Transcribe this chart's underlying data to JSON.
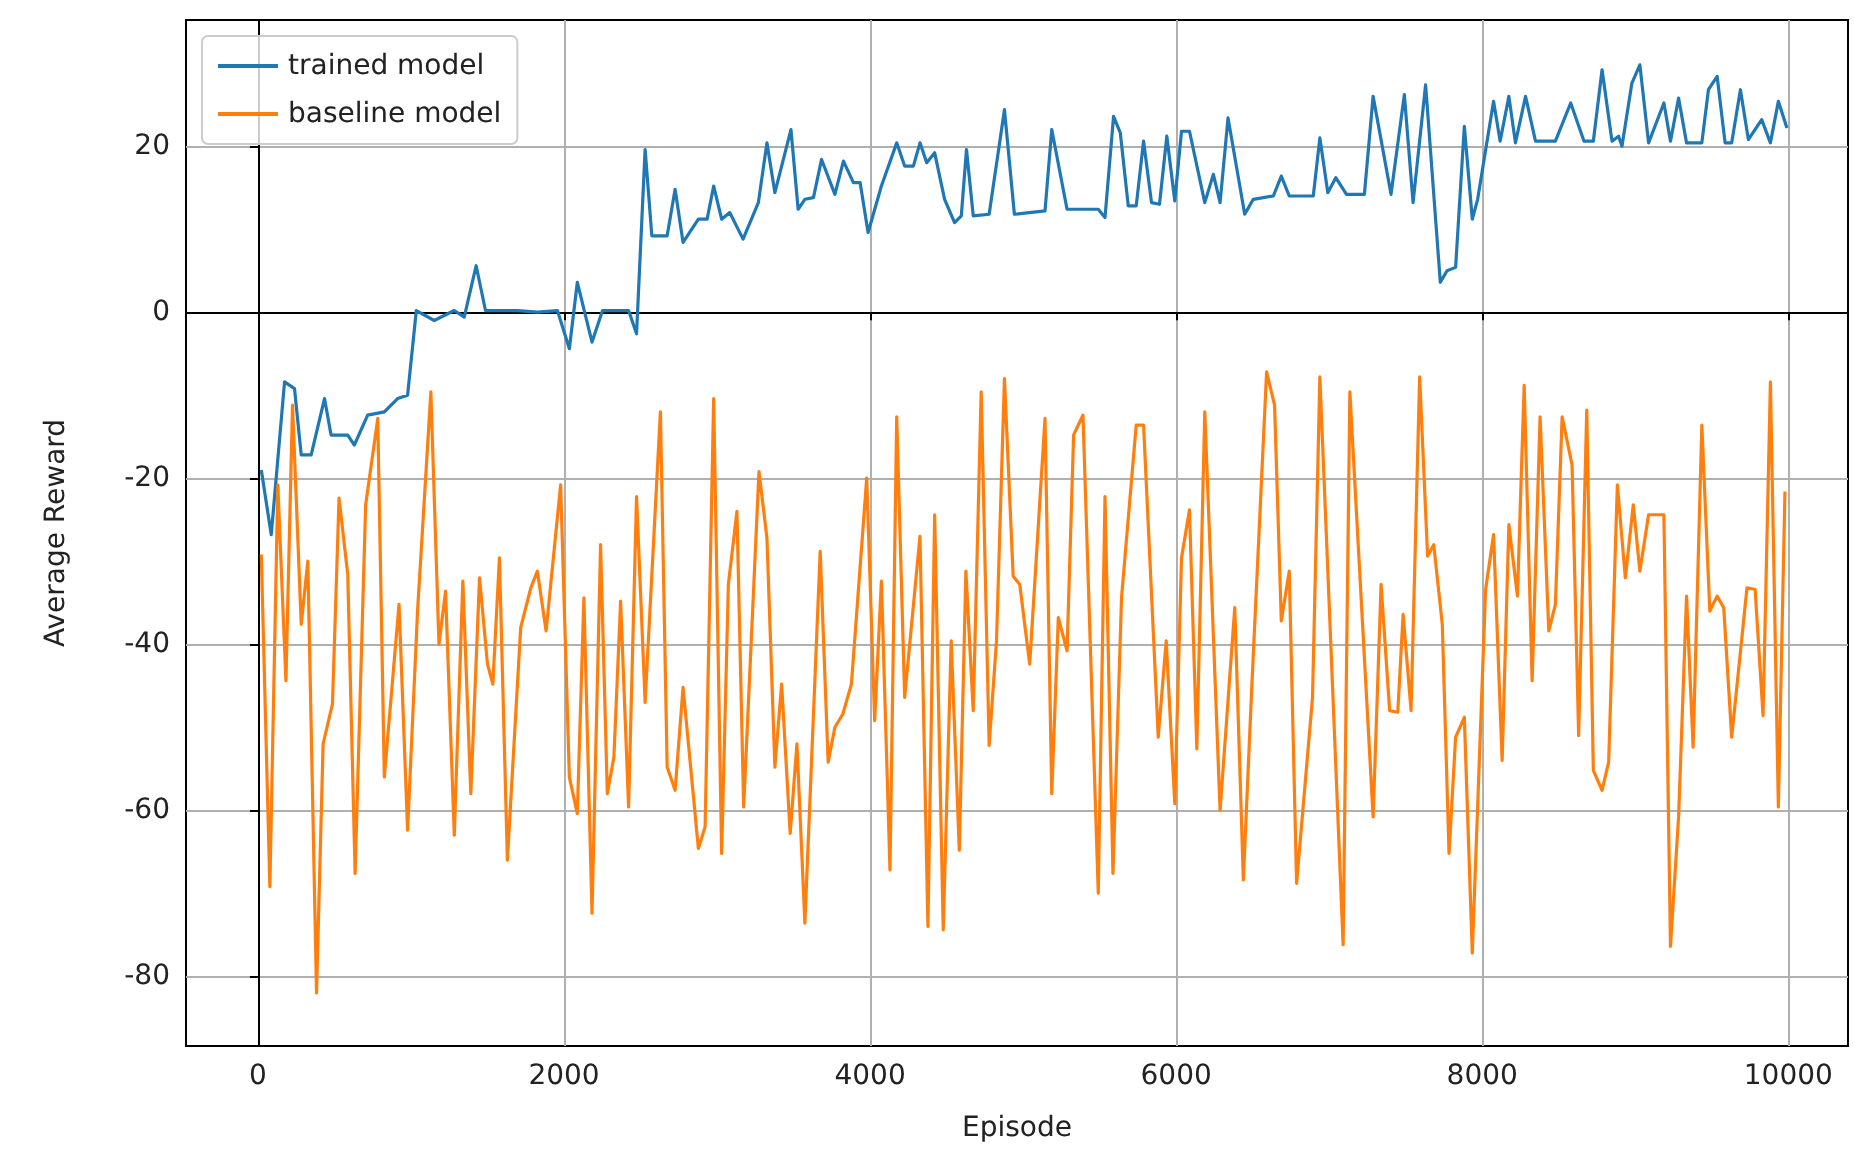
{
  "chart_data": {
    "type": "line",
    "xlabel": "Episode",
    "ylabel": "Average Reward",
    "xlim": [
      -470,
      10390
    ],
    "ylim": [
      -88.4,
      35.2
    ],
    "xticks": [
      0,
      2000,
      4000,
      6000,
      8000,
      10000
    ],
    "yticks": [
      -80,
      -60,
      -40,
      -20,
      0,
      20
    ],
    "grid": true,
    "legend": "top left",
    "series": [
      {
        "name": "trained model",
        "color": "#1f77b4",
        "x": [
          22,
          87,
          174,
          239,
          283,
          348,
          435,
          478,
          587,
          630,
          717,
          826,
          913,
          978,
          1035,
          1152,
          1283,
          1348,
          1426,
          1487,
          1696,
          1826,
          1957,
          2035,
          2087,
          2183,
          2252,
          2422,
          2474,
          2530,
          2574,
          2674,
          2726,
          2778,
          2878,
          2935,
          2978,
          3030,
          3083,
          3170,
          3270,
          3326,
          3378,
          3483,
          3530,
          3574,
          3630,
          3683,
          3770,
          3826,
          3891,
          3935,
          3987,
          4074,
          4174,
          4226,
          4283,
          4326,
          4370,
          4422,
          4487,
          4552,
          4596,
          4630,
          4674,
          4778,
          4878,
          4943,
          5143,
          5187,
          5287,
          5491,
          5535,
          5591,
          5635,
          5687,
          5739,
          5787,
          5839,
          5891,
          5939,
          5991,
          6035,
          6087,
          6187,
          6243,
          6287,
          6339,
          6448,
          6504,
          6635,
          6687,
          6739,
          6896,
          6939,
          6991,
          7043,
          7113,
          7230,
          7287,
          7404,
          7491,
          7548,
          7630,
          7726,
          7770,
          7826,
          7883,
          7935,
          7970,
          8074,
          8117,
          8174,
          8217,
          8283,
          8348,
          8478,
          8578,
          8665,
          8726,
          8783,
          8848,
          8891,
          8913,
          8978,
          9030,
          9087,
          9187,
          9230,
          9283,
          9335,
          9435,
          9478,
          9535,
          9587,
          9630,
          9687,
          9739,
          9826,
          9883,
          9935,
          9991
        ],
        "values": [
          -19,
          -26.8,
          -8.4,
          -9.2,
          -17.2,
          -17.2,
          -10.4,
          -14.8,
          -14.8,
          -16,
          -12.4,
          -12,
          -10.4,
          -10,
          0.2,
          -1,
          0.2,
          -0.6,
          5.6,
          0.2,
          0.2,
          0,
          0.2,
          -4.4,
          3.6,
          -3.6,
          0.2,
          0.2,
          -2.6,
          19.6,
          9.2,
          9.2,
          14.8,
          8.4,
          11.2,
          11.2,
          15.2,
          11.2,
          12,
          8.8,
          13.2,
          20.4,
          14.4,
          22,
          12.4,
          13.6,
          13.8,
          18.4,
          14.2,
          18.2,
          15.6,
          15.6,
          9.6,
          15.2,
          20.4,
          17.6,
          17.6,
          20.4,
          18,
          19.2,
          13.6,
          10.8,
          11.6,
          19.6,
          11.6,
          11.8,
          24.4,
          11.8,
          12.2,
          22,
          12.4,
          12.4,
          11.4,
          23.6,
          21.6,
          12.8,
          12.8,
          20.6,
          13.2,
          13,
          21.2,
          13.4,
          21.8,
          21.8,
          13.2,
          16.6,
          13.2,
          23.4,
          11.8,
          13.6,
          14,
          16.4,
          14,
          14,
          21,
          14.4,
          16.2,
          14.2,
          14.2,
          26,
          14.2,
          26.2,
          13.2,
          27.4,
          3.6,
          5,
          5.4,
          22.4,
          11.2,
          13.6,
          25.4,
          20.6,
          26,
          20.4,
          26,
          20.6,
          20.6,
          25.2,
          20.6,
          20.6,
          29.2,
          20.6,
          21.2,
          20,
          27.6,
          29.8,
          20.4,
          25.2,
          20.6,
          25.8,
          20.4,
          20.4,
          26.8,
          28.4,
          20.4,
          20.4,
          26.8,
          20.8,
          23.2,
          20.4,
          25.4,
          22.2
        ]
      },
      {
        "name": "baseline model",
        "color": "#ff7f0e",
        "x": [
          22,
          78,
          130,
          183,
          226,
          283,
          326,
          383,
          426,
          487,
          530,
          587,
          635,
          704,
          783,
          826,
          922,
          978,
          1043,
          1130,
          1183,
          1226,
          1283,
          1339,
          1391,
          1448,
          1500,
          1535,
          1578,
          1630,
          1717,
          1783,
          1826,
          1883,
          1978,
          2035,
          2087,
          2130,
          2183,
          2239,
          2283,
          2326,
          2370,
          2422,
          2474,
          2530,
          2630,
          2674,
          2726,
          2778,
          2878,
          2922,
          2978,
          3030,
          3074,
          3130,
          3174,
          3274,
          3326,
          3378,
          3422,
          3478,
          3522,
          3574,
          3674,
          3726,
          3770,
          3822,
          3878,
          3978,
          4030,
          4074,
          4130,
          4174,
          4226,
          4326,
          4378,
          4422,
          4478,
          4530,
          4583,
          4626,
          4674,
          4726,
          4778,
          4826,
          4878,
          4935,
          4978,
          5043,
          5143,
          5187,
          5230,
          5287,
          5330,
          5391,
          5491,
          5535,
          5587,
          5643,
          5739,
          5787,
          5883,
          5935,
          5991,
          6035,
          6087,
          6135,
          6187,
          6287,
          6383,
          6439,
          6495,
          6591,
          6643,
          6687,
          6739,
          6787,
          6891,
          6939,
          7091,
          7135,
          7287,
          7339,
          7395,
          7448,
          7483,
          7535,
          7591,
          7643,
          7683,
          7739,
          7783,
          7826,
          7883,
          7935,
          8022,
          8074,
          8130,
          8174,
          8230,
          8274,
          8326,
          8378,
          8435,
          8478,
          8522,
          8587,
          8630,
          8683,
          8726,
          8783,
          8826,
          8883,
          8935,
          8987,
          9030,
          9087,
          9187,
          9230,
          9283,
          9335,
          9378,
          9435,
          9487,
          9535,
          9578,
          9630,
          9730,
          9783,
          9835,
          9883,
          9935,
          9978
        ],
        "values": [
          -29.2,
          -69.2,
          -20.8,
          -44.4,
          -11.2,
          -37.6,
          -30,
          -82,
          -52,
          -47.2,
          -22.4,
          -31.6,
          -67.6,
          -23.2,
          -12.8,
          -56,
          -35.2,
          -62.4,
          -36,
          -9.6,
          -40,
          -33.6,
          -63,
          -32.4,
          -58,
          -32,
          -42.4,
          -44.8,
          -29.6,
          -66,
          -38,
          -33.2,
          -31.2,
          -38.4,
          -20.8,
          -56,
          -60.4,
          -34.4,
          -72.4,
          -28,
          -58,
          -53.6,
          -34.8,
          -59.6,
          -22.2,
          -47,
          -12,
          -54.8,
          -57.6,
          -45.2,
          -64.6,
          -62,
          -10.4,
          -65.2,
          -32.8,
          -24,
          -59.6,
          -19.2,
          -27.2,
          -54.8,
          -44.8,
          -62.8,
          -52,
          -73.6,
          -28.8,
          -54.2,
          -50,
          -48.4,
          -44.8,
          -20,
          -49.2,
          -32.4,
          -67.2,
          -12.6,
          -46.4,
          -27,
          -74,
          -24.4,
          -74.4,
          -39.6,
          -64.8,
          -31.2,
          -48,
          -9.6,
          -52.2,
          -39.6,
          -8,
          -31.8,
          -32.8,
          -42.4,
          -12.8,
          -58,
          -36.8,
          -40.8,
          -14.8,
          -12.4,
          -70,
          -22.2,
          -67.6,
          -34.4,
          -13.6,
          -13.6,
          -51.2,
          -39.6,
          -59.2,
          -29.6,
          -23.8,
          -52.6,
          -12,
          -60,
          -35.6,
          -68.4,
          -44.8,
          -7.2,
          -11.2,
          -37.2,
          -31.2,
          -68.8,
          -46.4,
          -7.8,
          -76.2,
          -9.6,
          -60.8,
          -32.8,
          -48,
          -48.2,
          -36.4,
          -48,
          -7.8,
          -29.4,
          -28,
          -37.6,
          -65.2,
          -51.2,
          -48.8,
          -77.2,
          -33.4,
          -26.8,
          -54,
          -25.6,
          -34.2,
          -8.8,
          -44.4,
          -12.6,
          -38.4,
          -35.2,
          -12.6,
          -18.4,
          -51,
          -11.8,
          -55.2,
          -57.6,
          -54.2,
          -20.8,
          -32,
          -23.2,
          -31.2,
          -24.4,
          -24.4,
          -76.4,
          -60.8,
          -34.2,
          -52.4,
          -13.6,
          -36,
          -34.2,
          -35.6,
          -51.2,
          -33.2,
          -33.4,
          -48.6,
          -8.4,
          -59.6,
          -21.6
        ]
      }
    ]
  }
}
